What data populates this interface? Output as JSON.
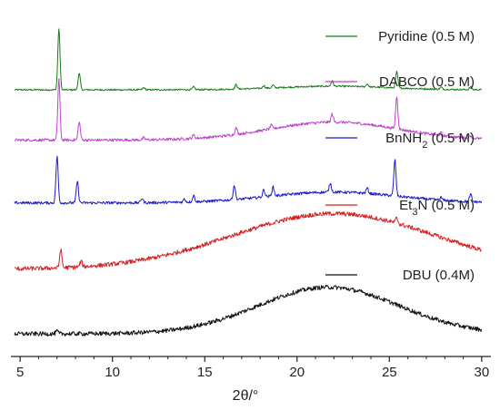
{
  "chart_data": {
    "type": "line",
    "title": "",
    "xlabel": "2θ/°",
    "ylabel": "",
    "xlim": [
      4.5,
      30.5
    ],
    "xticks": [
      5,
      10,
      15,
      20,
      25,
      30
    ],
    "yticks_shown": false,
    "grid": false,
    "legend_placement": "inline-right",
    "series": [
      {
        "name": "Pyridine (0.5 M)",
        "color": "#1a7a1a",
        "baseline": 1.0,
        "noise": 0.0015,
        "hump": {
          "center": 22.0,
          "width": 3.0,
          "height": 0.02
        },
        "peaks": [
          {
            "x": 7.1,
            "h": 0.34
          },
          {
            "x": 8.2,
            "h": 0.09
          },
          {
            "x": 11.7,
            "h": 0.012
          },
          {
            "x": 14.4,
            "h": 0.015
          },
          {
            "x": 16.7,
            "h": 0.025
          },
          {
            "x": 18.2,
            "h": 0.015
          },
          {
            "x": 18.7,
            "h": 0.015
          },
          {
            "x": 21.9,
            "h": 0.03
          },
          {
            "x": 23.8,
            "h": 0.015
          },
          {
            "x": 25.4,
            "h": 0.09
          },
          {
            "x": 27.8,
            "h": 0.012
          },
          {
            "x": 29.4,
            "h": 0.015
          }
        ]
      },
      {
        "name": "DABCO (0.5 M)",
        "color": "#c23fd1",
        "baseline": 0.72,
        "noise": 0.0025,
        "hump": {
          "center": 22.0,
          "width": 3.5,
          "height": 0.1
        },
        "peaks": [
          {
            "x": 7.1,
            "h": 0.34
          },
          {
            "x": 8.2,
            "h": 0.1
          },
          {
            "x": 11.7,
            "h": 0.012
          },
          {
            "x": 14.4,
            "h": 0.018
          },
          {
            "x": 16.7,
            "h": 0.035
          },
          {
            "x": 18.6,
            "h": 0.02
          },
          {
            "x": 21.9,
            "h": 0.045
          },
          {
            "x": 25.4,
            "h": 0.18
          },
          {
            "x": 27.8,
            "h": 0.015
          },
          {
            "x": 29.4,
            "h": 0.015
          }
        ]
      },
      {
        "name": "BnNH2 (0.5 M)",
        "color": "#1c1cc8",
        "baseline": 0.37,
        "noise": 0.0025,
        "hump": {
          "center": 22.0,
          "width": 3.5,
          "height": 0.06
        },
        "peaks": [
          {
            "x": 7.0,
            "h": 0.26
          },
          {
            "x": 8.1,
            "h": 0.12
          },
          {
            "x": 11.6,
            "h": 0.025
          },
          {
            "x": 13.9,
            "h": 0.018
          },
          {
            "x": 14.4,
            "h": 0.035
          },
          {
            "x": 16.6,
            "h": 0.08
          },
          {
            "x": 18.2,
            "h": 0.04
          },
          {
            "x": 18.7,
            "h": 0.05
          },
          {
            "x": 21.8,
            "h": 0.05
          },
          {
            "x": 23.8,
            "h": 0.03
          },
          {
            "x": 25.3,
            "h": 0.2
          },
          {
            "x": 27.8,
            "h": 0.015
          },
          {
            "x": 29.4,
            "h": 0.04
          }
        ]
      },
      {
        "name": "Et3N (0.5 M)",
        "color": "#d42020",
        "baseline": 0.0,
        "noise": 0.004,
        "hump": {
          "center": 22.0,
          "width": 5.5,
          "height": 0.31
        },
        "peaks": [
          {
            "x": 7.2,
            "h": 0.1
          },
          {
            "x": 8.3,
            "h": 0.03
          },
          {
            "x": 25.4,
            "h": 0.03
          }
        ]
      },
      {
        "name": "DBU (0.4M)",
        "color": "#111111",
        "baseline": -0.36,
        "noise": 0.004,
        "hump": {
          "center": 21.7,
          "width": 3.8,
          "height": 0.26
        },
        "peaks": [
          {
            "x": 7.0,
            "h": 0.015
          }
        ]
      }
    ],
    "legend": [
      {
        "label": "Pyridine (0.5 M)",
        "color": "#1a7a1a"
      },
      {
        "label": "DABCO (0.5 M)",
        "color": "#c23fd1"
      },
      {
        "label": "BnNH2 (0.5 M)",
        "color": "#1c1cc8"
      },
      {
        "label": "Et3N (0.5 M)",
        "color": "#d42020"
      },
      {
        "label": "DBU (0.4M)",
        "color": "#111111"
      }
    ]
  }
}
